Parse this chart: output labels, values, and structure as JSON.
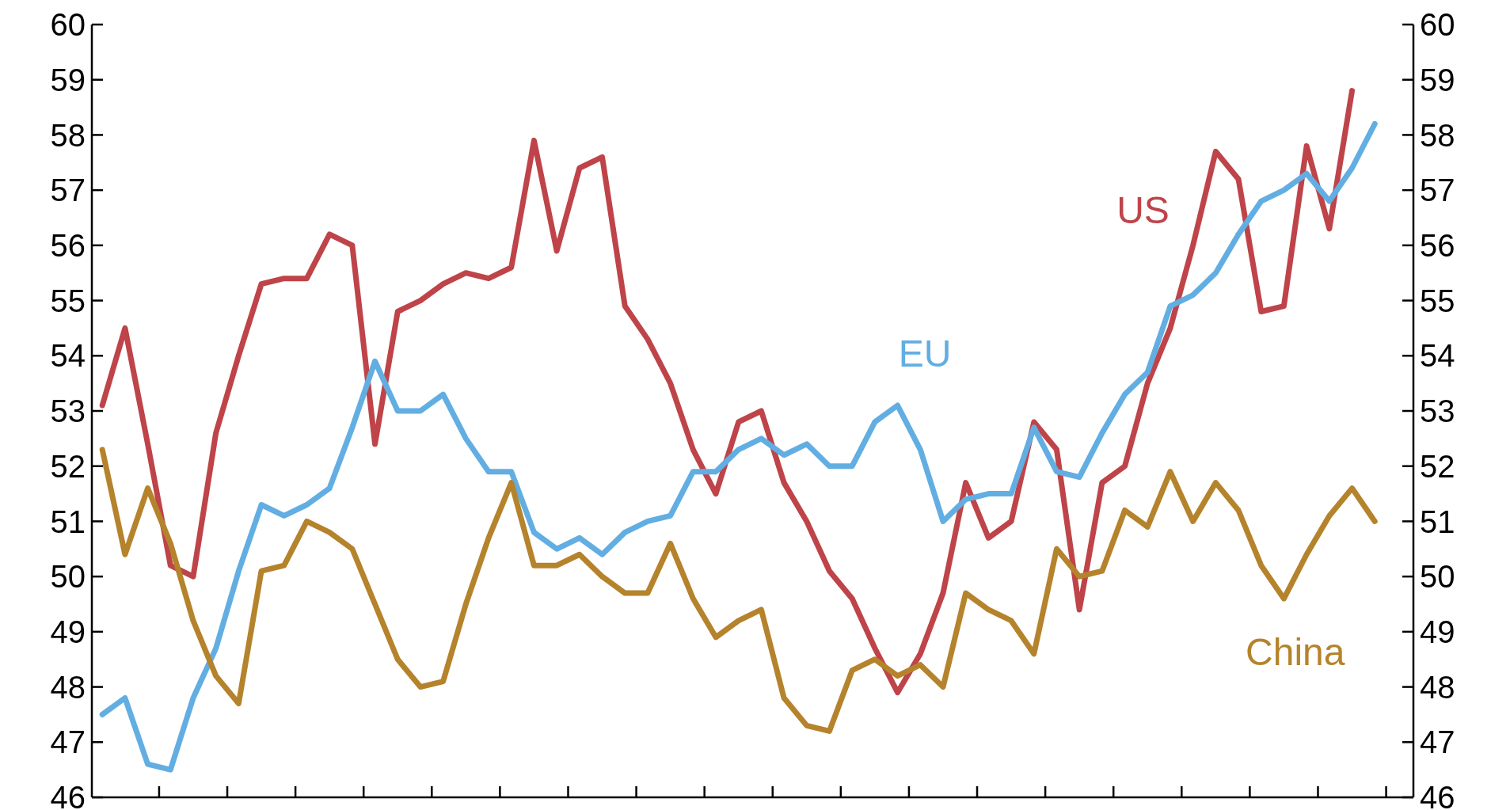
{
  "chart_data": {
    "type": "line",
    "categories": [
      null,
      null,
      null,
      null,
      null,
      null,
      null,
      null,
      null,
      null,
      null,
      null,
      null,
      null,
      null,
      null,
      null,
      null,
      null,
      null,
      null,
      null,
      null,
      null,
      null,
      null,
      null,
      null,
      null,
      null,
      null,
      null,
      null,
      null,
      null,
      null,
      null,
      null,
      null,
      null,
      null,
      null,
      null,
      null,
      null,
      null,
      null,
      null,
      null,
      null,
      null,
      null,
      null,
      null,
      null,
      null,
      null
    ],
    "series": [
      {
        "name": "US",
        "color": "#be4449",
        "values": [
          53.1,
          54.5,
          52.4,
          50.2,
          50.0,
          52.6,
          54.0,
          55.3,
          55.4,
          55.4,
          56.2,
          56.0,
          52.4,
          54.8,
          55.0,
          55.3,
          55.5,
          55.4,
          55.6,
          57.9,
          55.9,
          57.4,
          57.6,
          54.9,
          54.3,
          53.5,
          52.3,
          51.5,
          52.8,
          53.0,
          51.7,
          51.0,
          50.1,
          49.6,
          48.7,
          47.9,
          48.6,
          49.7,
          51.7,
          50.7,
          51.0,
          52.8,
          52.3,
          49.4,
          51.7,
          52.0,
          53.5,
          54.5,
          56.0,
          57.7,
          57.2,
          54.8,
          54.9,
          57.8,
          56.3,
          58.8,
          null
        ]
      },
      {
        "name": "EU",
        "color": "#62aee2",
        "values": [
          47.5,
          47.8,
          46.6,
          46.5,
          47.8,
          48.7,
          50.1,
          51.3,
          51.1,
          51.3,
          51.6,
          52.7,
          53.9,
          53.0,
          53.0,
          53.3,
          52.5,
          51.9,
          51.9,
          50.8,
          50.5,
          50.7,
          50.4,
          50.8,
          51.0,
          51.1,
          51.9,
          51.9,
          52.3,
          52.5,
          52.2,
          52.4,
          52.0,
          52.0,
          52.8,
          53.1,
          52.3,
          51.0,
          51.4,
          51.5,
          51.5,
          52.7,
          51.9,
          51.8,
          52.6,
          53.3,
          53.7,
          54.9,
          55.1,
          55.5,
          56.2,
          56.8,
          57.0,
          57.3,
          56.8,
          57.4,
          58.2
        ]
      },
      {
        "name": "China",
        "color": "#b5832c",
        "values": [
          52.3,
          50.4,
          51.6,
          50.6,
          49.2,
          48.2,
          47.7,
          50.1,
          50.2,
          51.0,
          50.8,
          50.5,
          49.5,
          48.5,
          48.0,
          48.1,
          49.5,
          50.7,
          51.7,
          50.2,
          50.2,
          50.4,
          50.0,
          49.7,
          49.7,
          50.6,
          49.6,
          48.9,
          49.2,
          49.4,
          47.8,
          47.3,
          47.2,
          48.3,
          48.5,
          48.2,
          48.4,
          48.0,
          49.7,
          49.4,
          49.2,
          48.6,
          50.5,
          50.0,
          50.1,
          51.2,
          50.9,
          51.9,
          51.0,
          51.7,
          51.2,
          50.2,
          49.6,
          50.4,
          51.1,
          51.6,
          51.0
        ]
      }
    ],
    "ylim": [
      46,
      60
    ],
    "yticks": [
      46,
      47,
      48,
      49,
      50,
      51,
      52,
      53,
      54,
      55,
      56,
      57,
      58,
      59,
      60
    ],
    "y2lim": [
      46,
      60
    ],
    "y2ticks": [
      46,
      47,
      48,
      49,
      50,
      51,
      52,
      53,
      54,
      55,
      56,
      57,
      58,
      59,
      60
    ],
    "marker": "none",
    "line_style": "solid"
  }
}
